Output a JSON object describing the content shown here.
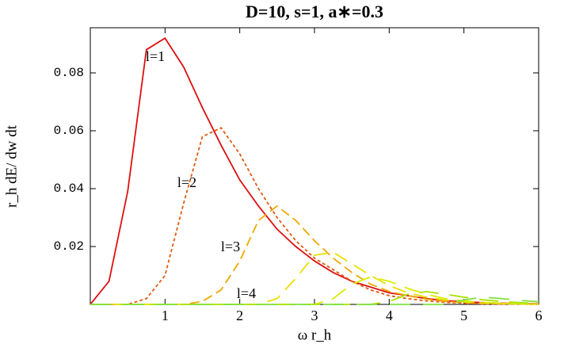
{
  "chart_data": {
    "type": "line",
    "title": "D=10, s=1, a∗=0.3",
    "xlabel": "ω r_h",
    "ylabel": "r_h dE/ dw dt",
    "x": [
      0,
      0.25,
      0.5,
      0.75,
      1,
      1.25,
      1.5,
      1.75,
      2,
      2.25,
      2.5,
      2.75,
      3,
      3.25,
      3.5,
      3.75,
      4,
      4.25,
      4.5,
      4.75,
      5,
      5.25,
      5.5,
      5.75,
      6
    ],
    "series": [
      {
        "name": "l=1",
        "color": "#dd1010",
        "values": [
          0,
          0.008,
          0.039,
          0.088,
          0.092,
          0.082,
          0.068,
          0.055,
          0.043,
          0.034,
          0.026,
          0.02,
          0.015,
          0.011,
          0.008,
          0.006,
          0.004,
          0.003,
          0.002,
          0.0013,
          0.0009,
          0.0006,
          0.0004,
          0.0003,
          0.0002
        ]
      },
      {
        "name": "l=2",
        "color": "#e05a10",
        "values": [
          0,
          0,
          0,
          0.002,
          0.01,
          0.035,
          0.058,
          0.061,
          0.052,
          0.04,
          0.03,
          0.022,
          0.016,
          0.012,
          0.008,
          0.005,
          0.003,
          0.002,
          0.0012,
          0.0007,
          0.0004,
          0.0002,
          0.0001,
          0.0001,
          0
        ]
      },
      {
        "name": "l=3",
        "color": "#f0a800",
        "values": [
          0,
          0,
          0,
          0,
          0,
          0,
          0.001,
          0.005,
          0.015,
          0.029,
          0.034,
          0.029,
          0.022,
          0.016,
          0.011,
          0.007,
          0.0045,
          0.003,
          0.0018,
          0.001,
          0.0006,
          0.0003,
          0.0002,
          0.0001,
          0
        ]
      },
      {
        "name": "l=4",
        "color": "#e8e000",
        "values": [
          0,
          0,
          0,
          0,
          0,
          0,
          0,
          0,
          0,
          0,
          0.002,
          0.009,
          0.017,
          0.018,
          0.014,
          0.01,
          0.0065,
          0.004,
          0.0025,
          0.0015,
          0.0009,
          0.0005,
          0.0003,
          0.0002,
          0.0001
        ]
      },
      {
        "color": "#d8ee00",
        "values": [
          0,
          0,
          0,
          0,
          0,
          0,
          0,
          0,
          0,
          0,
          0,
          0,
          0,
          0.002,
          0.007,
          0.0095,
          0.008,
          0.0055,
          0.0035,
          0.002,
          0.0012,
          0.0007,
          0.0004,
          0.0002,
          0.0001
        ]
      },
      {
        "color": "#a8e400",
        "values": [
          0,
          0,
          0,
          0,
          0,
          0,
          0,
          0,
          0,
          0,
          0,
          0,
          0,
          0,
          0,
          0,
          0.001,
          0.0035,
          0.0044,
          0.0035,
          0.0025,
          0.0016,
          0.001,
          0.0006,
          0.0003
        ]
      },
      {
        "color": "#80e040",
        "values": [
          0,
          0,
          0,
          0,
          0,
          0,
          0,
          0,
          0,
          0,
          0,
          0,
          0,
          0,
          0,
          0,
          0,
          0,
          0,
          0,
          0.0015,
          0.0025,
          0.002,
          0.0014,
          0.0009
        ]
      }
    ],
    "xlim": [
      0,
      6
    ],
    "xticks": [
      1,
      2,
      3,
      4,
      5,
      6
    ],
    "ylim": [
      0,
      0.0956
    ],
    "yticks": [
      0.02,
      0.04,
      0.06,
      0.08
    ]
  }
}
